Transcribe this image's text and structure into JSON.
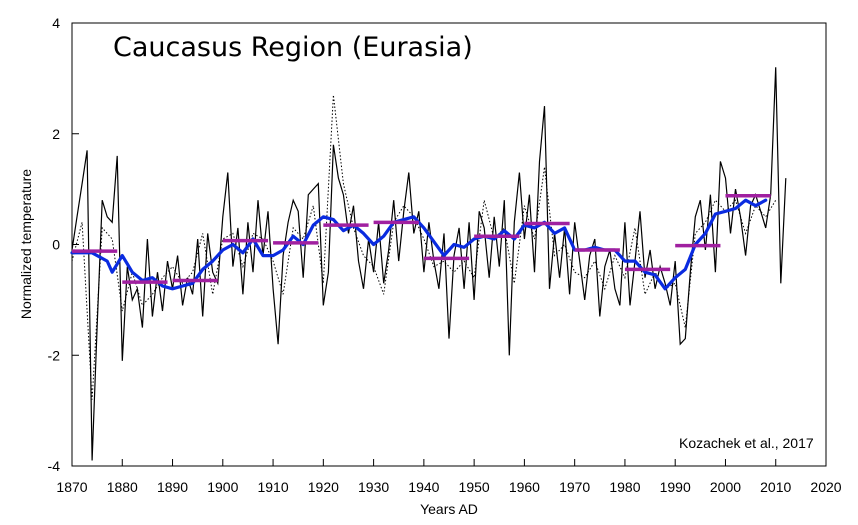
{
  "chart_data": {
    "type": "line",
    "title": "Caucasus Region (Eurasia)",
    "annotation": "Kozachek et al., 2017",
    "xlabel": "Years AD",
    "ylabel": "Normalized temperature",
    "xlim": [
      1870,
      2020
    ],
    "ylim": [
      -4,
      4
    ],
    "x_ticks": [
      1870,
      1880,
      1890,
      1900,
      1910,
      1920,
      1930,
      1940,
      1950,
      1960,
      1970,
      1980,
      1990,
      2000,
      2010,
      2020
    ],
    "y_ticks": [
      -4,
      -2,
      0,
      2,
      4
    ],
    "grid": false,
    "colors": {
      "annual": "#000000",
      "dotted": "#000000",
      "smoothed": "#0a2be0",
      "decadal": "#a020a0"
    },
    "series": [
      {
        "style": "solid-thin",
        "points": [
          [
            1870,
            -0.1
          ],
          [
            1871,
            0.5
          ],
          [
            1872,
            1.1
          ],
          [
            1873,
            1.7
          ],
          [
            1874,
            -3.9
          ],
          [
            1875,
            -1.5
          ],
          [
            1876,
            0.8
          ],
          [
            1877,
            0.5
          ],
          [
            1878,
            0.4
          ],
          [
            1879,
            1.6
          ],
          [
            1880,
            -2.1
          ],
          [
            1881,
            -0.4
          ],
          [
            1882,
            -1.0
          ],
          [
            1883,
            -0.8
          ],
          [
            1884,
            -1.5
          ],
          [
            1885,
            0.1
          ],
          [
            1886,
            -1.3
          ],
          [
            1887,
            -0.5
          ],
          [
            1888,
            -1.2
          ],
          [
            1889,
            -0.3
          ],
          [
            1890,
            -0.8
          ],
          [
            1891,
            -0.2
          ],
          [
            1892,
            -1.1
          ],
          [
            1893,
            -0.6
          ],
          [
            1894,
            -0.9
          ],
          [
            1895,
            0.1
          ],
          [
            1896,
            -1.3
          ],
          [
            1897,
            0.2
          ],
          [
            1898,
            -0.5
          ],
          [
            1899,
            -0.7
          ],
          [
            1900,
            0.5
          ],
          [
            1901,
            1.3
          ],
          [
            1902,
            -0.4
          ],
          [
            1903,
            0.3
          ],
          [
            1904,
            -0.9
          ],
          [
            1905,
            0.4
          ],
          [
            1906,
            -0.5
          ],
          [
            1907,
            0.8
          ],
          [
            1908,
            -0.2
          ],
          [
            1909,
            0.6
          ],
          [
            1910,
            -0.8
          ],
          [
            1911,
            -1.8
          ],
          [
            1912,
            -0.2
          ],
          [
            1913,
            0.4
          ],
          [
            1914,
            0.8
          ],
          [
            1915,
            0.6
          ],
          [
            1916,
            -0.6
          ],
          [
            1917,
            0.9
          ],
          [
            1918,
            1.0
          ],
          [
            1919,
            1.1
          ],
          [
            1920,
            -1.1
          ],
          [
            1921,
            -0.5
          ],
          [
            1922,
            1.8
          ],
          [
            1923,
            1.2
          ],
          [
            1924,
            0.9
          ],
          [
            1925,
            0.2
          ],
          [
            1926,
            0.7
          ],
          [
            1927,
            -0.3
          ],
          [
            1928,
            -0.8
          ],
          [
            1929,
            0.1
          ],
          [
            1930,
            -0.5
          ],
          [
            1931,
            0.4
          ],
          [
            1932,
            -0.7
          ],
          [
            1933,
            -0.1
          ],
          [
            1934,
            0.8
          ],
          [
            1935,
            -0.3
          ],
          [
            1936,
            0.6
          ],
          [
            1937,
            1.3
          ],
          [
            1938,
            0.2
          ],
          [
            1939,
            0.6
          ],
          [
            1940,
            -0.5
          ],
          [
            1941,
            0.4
          ],
          [
            1942,
            -0.3
          ],
          [
            1943,
            -0.8
          ],
          [
            1944,
            0.2
          ],
          [
            1945,
            -1.7
          ],
          [
            1946,
            -0.2
          ],
          [
            1947,
            0.3
          ],
          [
            1948,
            -0.8
          ],
          [
            1949,
            0.4
          ],
          [
            1950,
            -1.0
          ],
          [
            1951,
            0.6
          ],
          [
            1952,
            0.3
          ],
          [
            1953,
            -0.6
          ],
          [
            1954,
            0.5
          ],
          [
            1955,
            -0.4
          ],
          [
            1956,
            0.8
          ],
          [
            1957,
            -2.0
          ],
          [
            1958,
            0.4
          ],
          [
            1959,
            1.3
          ],
          [
            1960,
            0.1
          ],
          [
            1961,
            0.9
          ],
          [
            1962,
            -0.5
          ],
          [
            1963,
            1.5
          ],
          [
            1964,
            2.5
          ],
          [
            1965,
            -0.8
          ],
          [
            1966,
            0.2
          ],
          [
            1967,
            -0.6
          ],
          [
            1968,
            0.3
          ],
          [
            1969,
            -0.9
          ],
          [
            1970,
            0.4
          ],
          [
            1971,
            -0.3
          ],
          [
            1972,
            -1.0
          ],
          [
            1973,
            -0.2
          ],
          [
            1974,
            0.1
          ],
          [
            1975,
            -1.3
          ],
          [
            1976,
            -0.4
          ],
          [
            1977,
            -0.1
          ],
          [
            1978,
            -0.8
          ],
          [
            1979,
            -1.1
          ],
          [
            1980,
            0.4
          ],
          [
            1981,
            -1.1
          ],
          [
            1982,
            -0.3
          ],
          [
            1983,
            0.6
          ],
          [
            1984,
            -0.6
          ],
          [
            1985,
            -0.1
          ],
          [
            1986,
            -0.8
          ],
          [
            1987,
            -0.4
          ],
          [
            1988,
            -0.7
          ],
          [
            1989,
            -1.1
          ],
          [
            1990,
            -0.3
          ],
          [
            1991,
            -1.8
          ],
          [
            1992,
            -1.7
          ],
          [
            1993,
            -0.5
          ],
          [
            1994,
            0.5
          ],
          [
            1995,
            0.8
          ],
          [
            1996,
            -0.1
          ],
          [
            1997,
            0.9
          ],
          [
            1998,
            -0.5
          ],
          [
            1999,
            1.5
          ],
          [
            2000,
            1.2
          ],
          [
            2001,
            0.2
          ],
          [
            2002,
            1.0
          ],
          [
            2003,
            0.5
          ],
          [
            2004,
            -0.2
          ],
          [
            2005,
            0.7
          ],
          [
            2006,
            0.9
          ],
          [
            2007,
            0.6
          ],
          [
            2008,
            0.3
          ],
          [
            2009,
            0.9
          ],
          [
            2010,
            3.2
          ],
          [
            2011,
            -0.7
          ],
          [
            2012,
            1.2
          ]
        ]
      },
      {
        "style": "dotted",
        "points": [
          [
            1870,
            -0.3
          ],
          [
            1872,
            0.4
          ],
          [
            1874,
            -2.8
          ],
          [
            1876,
            0.3
          ],
          [
            1878,
            0.1
          ],
          [
            1880,
            -1.2
          ],
          [
            1882,
            -0.5
          ],
          [
            1884,
            -1.1
          ],
          [
            1886,
            -0.9
          ],
          [
            1888,
            -0.6
          ],
          [
            1890,
            -0.4
          ],
          [
            1892,
            -0.7
          ],
          [
            1894,
            -0.5
          ],
          [
            1896,
            0.2
          ],
          [
            1898,
            -0.9
          ],
          [
            1900,
            0.1
          ],
          [
            1902,
            0.2
          ],
          [
            1904,
            -0.4
          ],
          [
            1906,
            0.2
          ],
          [
            1908,
            0.1
          ],
          [
            1910,
            -0.3
          ],
          [
            1912,
            -0.9
          ],
          [
            1914,
            0.3
          ],
          [
            1916,
            0.1
          ],
          [
            1918,
            0.7
          ],
          [
            1920,
            -0.7
          ],
          [
            1922,
            2.7
          ],
          [
            1924,
            1.1
          ],
          [
            1926,
            0.3
          ],
          [
            1928,
            -0.2
          ],
          [
            1930,
            -0.4
          ],
          [
            1932,
            -0.9
          ],
          [
            1934,
            0.4
          ],
          [
            1936,
            0.7
          ],
          [
            1938,
            0.5
          ],
          [
            1940,
            0.1
          ],
          [
            1942,
            -0.4
          ],
          [
            1944,
            -0.3
          ],
          [
            1946,
            -0.5
          ],
          [
            1948,
            -0.3
          ],
          [
            1950,
            -0.6
          ],
          [
            1952,
            0.8
          ],
          [
            1954,
            0.1
          ],
          [
            1956,
            0.3
          ],
          [
            1958,
            -0.7
          ],
          [
            1960,
            0.7
          ],
          [
            1962,
            0.1
          ],
          [
            1964,
            1.4
          ],
          [
            1966,
            -0.2
          ],
          [
            1968,
            0.0
          ],
          [
            1970,
            -0.5
          ],
          [
            1972,
            -0.6
          ],
          [
            1974,
            -0.3
          ],
          [
            1976,
            -0.8
          ],
          [
            1978,
            -0.2
          ],
          [
            1980,
            -0.6
          ],
          [
            1982,
            0.3
          ],
          [
            1984,
            -0.9
          ],
          [
            1986,
            -0.5
          ],
          [
            1988,
            -0.8
          ],
          [
            1990,
            -0.7
          ],
          [
            1992,
            -1.5
          ],
          [
            1994,
            0.2
          ],
          [
            1996,
            0.4
          ],
          [
            1998,
            0.8
          ],
          [
            2000,
            0.6
          ],
          [
            2002,
            0.8
          ],
          [
            2004,
            0.2
          ],
          [
            2006,
            0.7
          ],
          [
            2008,
            0.5
          ],
          [
            2010,
            0.8
          ]
        ]
      },
      {
        "style": "smoothed",
        "points": [
          [
            1870,
            -0.15
          ],
          [
            1874,
            -0.15
          ],
          [
            1877,
            -0.3
          ],
          [
            1878,
            -0.5
          ],
          [
            1880,
            -0.2
          ],
          [
            1882,
            -0.5
          ],
          [
            1884,
            -0.65
          ],
          [
            1886,
            -0.6
          ],
          [
            1888,
            -0.75
          ],
          [
            1890,
            -0.8
          ],
          [
            1892,
            -0.75
          ],
          [
            1894,
            -0.7
          ],
          [
            1896,
            -0.45
          ],
          [
            1898,
            -0.3
          ],
          [
            1900,
            -0.1
          ],
          [
            1902,
            0.0
          ],
          [
            1904,
            -0.15
          ],
          [
            1906,
            0.1
          ],
          [
            1908,
            -0.2
          ],
          [
            1910,
            -0.2
          ],
          [
            1912,
            -0.1
          ],
          [
            1914,
            0.15
          ],
          [
            1916,
            0.0
          ],
          [
            1918,
            0.35
          ],
          [
            1920,
            0.5
          ],
          [
            1922,
            0.45
          ],
          [
            1924,
            0.25
          ],
          [
            1926,
            0.35
          ],
          [
            1928,
            0.2
          ],
          [
            1930,
            0.0
          ],
          [
            1932,
            0.15
          ],
          [
            1934,
            0.4
          ],
          [
            1936,
            0.45
          ],
          [
            1938,
            0.5
          ],
          [
            1940,
            0.3
          ],
          [
            1942,
            0.05
          ],
          [
            1944,
            -0.2
          ],
          [
            1946,
            0.0
          ],
          [
            1948,
            -0.05
          ],
          [
            1950,
            0.1
          ],
          [
            1952,
            0.15
          ],
          [
            1954,
            0.1
          ],
          [
            1956,
            0.25
          ],
          [
            1958,
            0.1
          ],
          [
            1960,
            0.35
          ],
          [
            1962,
            0.3
          ],
          [
            1964,
            0.4
          ],
          [
            1966,
            0.2
          ],
          [
            1968,
            0.3
          ],
          [
            1970,
            -0.1
          ],
          [
            1972,
            -0.1
          ],
          [
            1974,
            -0.05
          ],
          [
            1976,
            -0.1
          ],
          [
            1978,
            -0.1
          ],
          [
            1980,
            -0.3
          ],
          [
            1982,
            -0.3
          ],
          [
            1984,
            -0.5
          ],
          [
            1986,
            -0.55
          ],
          [
            1988,
            -0.8
          ],
          [
            1990,
            -0.6
          ],
          [
            1992,
            -0.45
          ],
          [
            1994,
            0.0
          ],
          [
            1996,
            0.2
          ],
          [
            1998,
            0.55
          ],
          [
            2000,
            0.6
          ],
          [
            2002,
            0.65
          ],
          [
            2004,
            0.8
          ],
          [
            2006,
            0.7
          ],
          [
            2008,
            0.8
          ]
        ]
      }
    ],
    "decadal_means": [
      {
        "start": 1870,
        "end": 1879,
        "value": -0.12
      },
      {
        "start": 1880,
        "end": 1889,
        "value": -0.68
      },
      {
        "start": 1890,
        "end": 1899,
        "value": -0.65
      },
      {
        "start": 1900,
        "end": 1909,
        "value": 0.07
      },
      {
        "start": 1910,
        "end": 1919,
        "value": 0.03
      },
      {
        "start": 1920,
        "end": 1929,
        "value": 0.35
      },
      {
        "start": 1930,
        "end": 1939,
        "value": 0.4
      },
      {
        "start": 1940,
        "end": 1949,
        "value": -0.25
      },
      {
        "start": 1950,
        "end": 1959,
        "value": 0.15
      },
      {
        "start": 1960,
        "end": 1969,
        "value": 0.38
      },
      {
        "start": 1970,
        "end": 1979,
        "value": -0.1
      },
      {
        "start": 1980,
        "end": 1989,
        "value": -0.45
      },
      {
        "start": 1990,
        "end": 1999,
        "value": -0.02
      },
      {
        "start": 2000,
        "end": 2009,
        "value": 0.88
      }
    ]
  }
}
